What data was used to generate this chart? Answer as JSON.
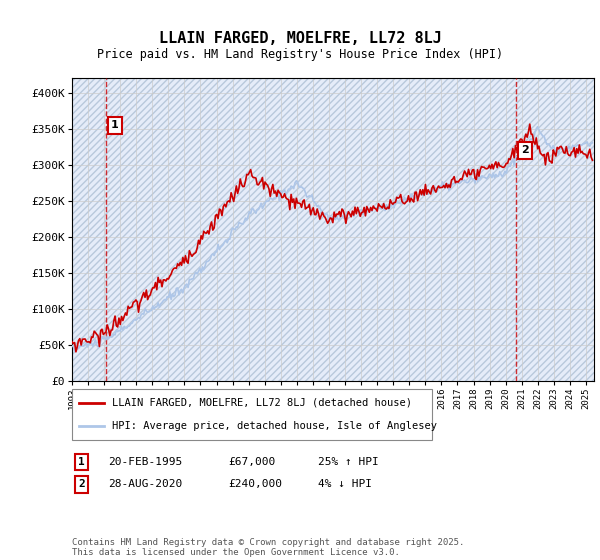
{
  "title": "LLAIN FARGED, MOELFRE, LL72 8LJ",
  "subtitle": "Price paid vs. HM Land Registry's House Price Index (HPI)",
  "ylabel_ticks": [
    "£0",
    "£50K",
    "£100K",
    "£150K",
    "£200K",
    "£250K",
    "£300K",
    "£350K",
    "£400K"
  ],
  "ytick_values": [
    0,
    50000,
    100000,
    150000,
    200000,
    250000,
    300000,
    350000,
    400000
  ],
  "ylim": [
    0,
    420000
  ],
  "xlim_start": 1993.0,
  "xlim_end": 2025.5,
  "hpi_color": "#aec6e8",
  "price_color": "#cc0000",
  "sale1_x": 1995.13,
  "sale1_y": 67000,
  "sale1_label": "1",
  "sale2_x": 2020.65,
  "sale2_y": 240000,
  "sale2_label": "2",
  "legend_line1": "LLAIN FARGED, MOELFRE, LL72 8LJ (detached house)",
  "legend_line2": "HPI: Average price, detached house, Isle of Anglesey",
  "annotation1": "1    20-FEB-1995        £67,000        25% ↑ HPI",
  "annotation2": "2    28-AUG-2020        £240,000      4% ↓ HPI",
  "footnote": "Contains HM Land Registry data © Crown copyright and database right 2025.\nThis data is licensed under the Open Government Licence v3.0.",
  "background_color": "#f0f4ff",
  "hatch_color": "#c8d4e8",
  "grid_color": "#cccccc",
  "dashed_line_color": "#cc0000"
}
